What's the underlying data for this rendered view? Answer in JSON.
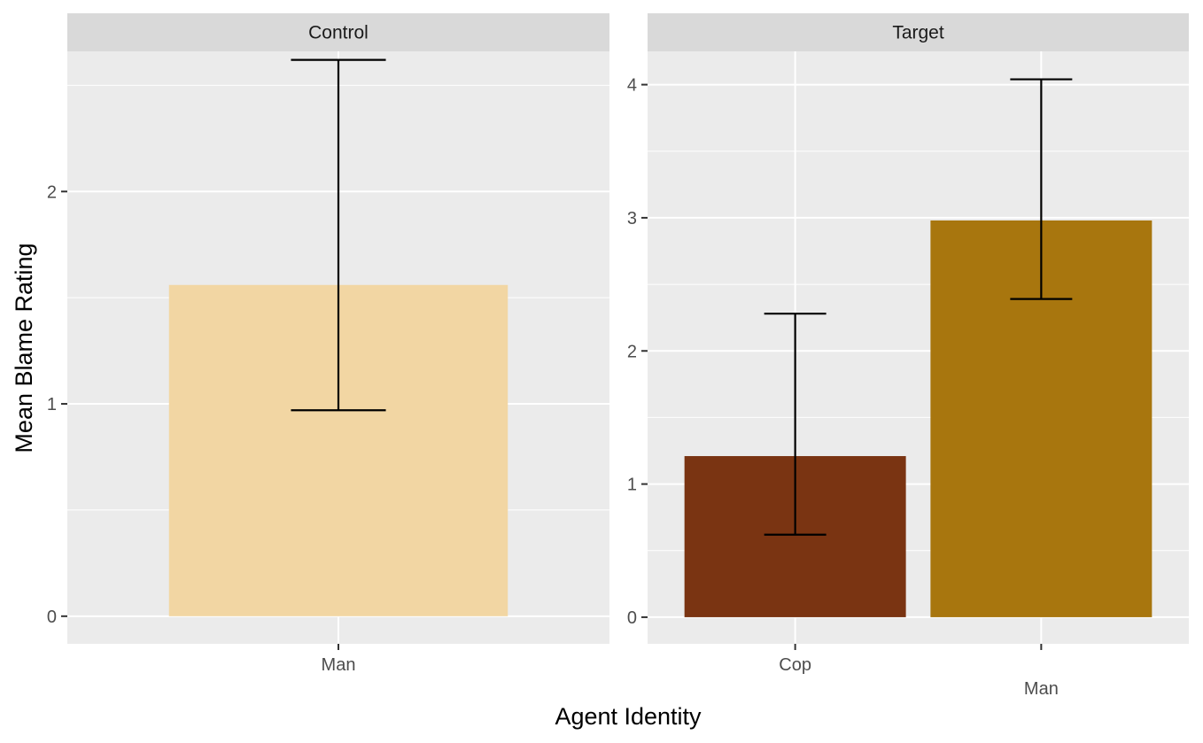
{
  "chart_data": {
    "type": "bar",
    "xlabel": "Agent Identity",
    "ylabel": "Mean Blame Rating",
    "panels": [
      {
        "name": "Control",
        "ylim": [
          -0.13,
          2.66
        ],
        "yticks": [
          0,
          1,
          2
        ],
        "categories": [
          "Man"
        ],
        "values": [
          1.56
        ],
        "error_low": [
          0.97
        ],
        "error_high": [
          2.62
        ],
        "colors": [
          "#F2D6A3"
        ]
      },
      {
        "name": "Target",
        "ylim": [
          -0.2,
          4.25
        ],
        "yticks": [
          0,
          1,
          2,
          3,
          4
        ],
        "categories": [
          "Cop",
          "Man"
        ],
        "values": [
          1.21,
          2.98
        ],
        "error_low": [
          0.62,
          2.39
        ],
        "error_high": [
          2.28,
          4.04
        ],
        "colors": [
          "#7A3412",
          "#A8760E"
        ]
      }
    ],
    "grid": true
  }
}
